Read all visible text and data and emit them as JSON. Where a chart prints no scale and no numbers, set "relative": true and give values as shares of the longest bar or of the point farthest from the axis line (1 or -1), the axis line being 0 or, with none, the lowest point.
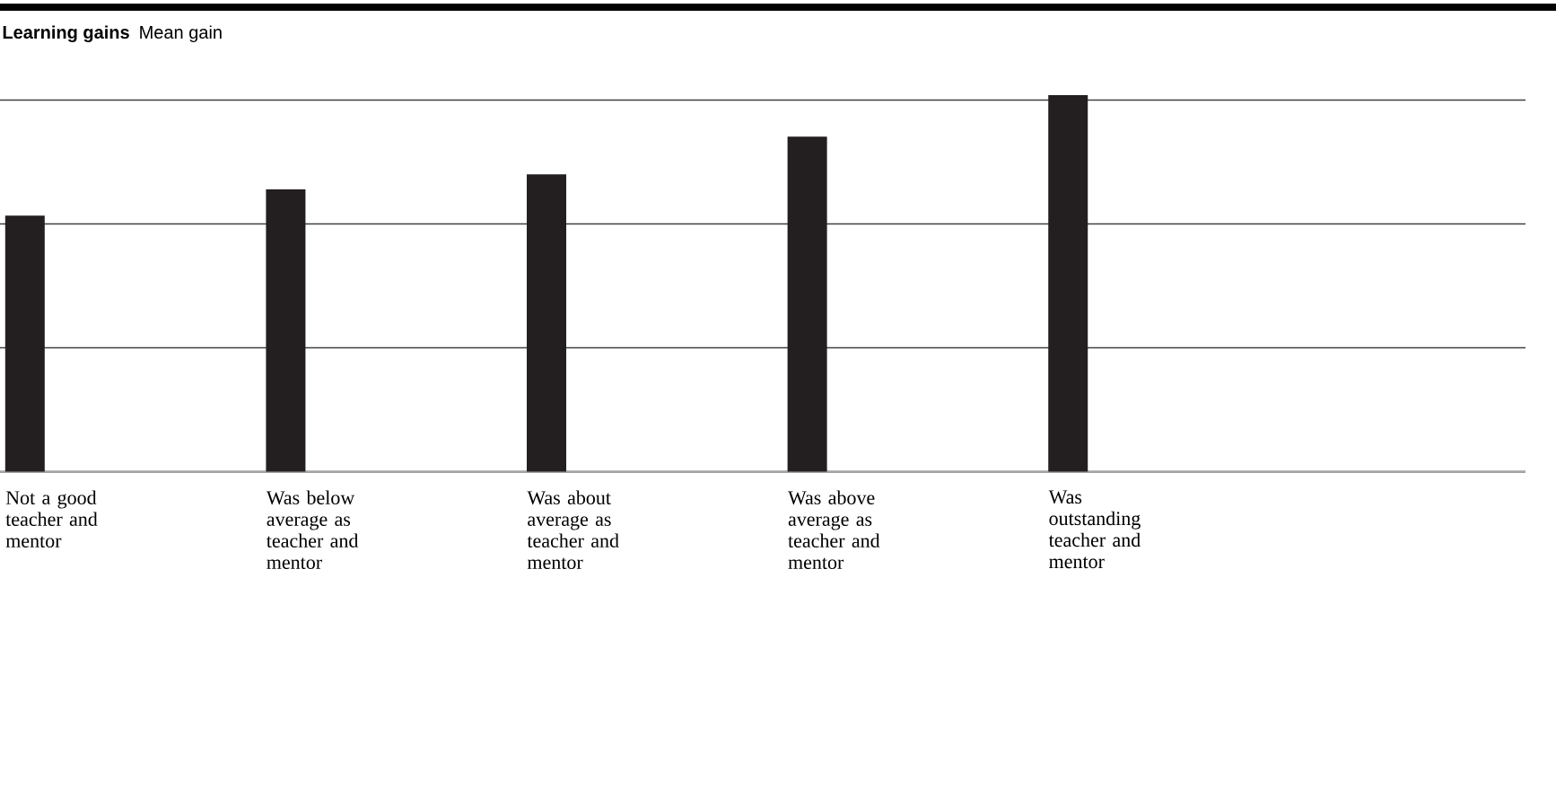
{
  "chart_data": {
    "type": "bar",
    "title": "Learning gains",
    "subtitle": "Mean gain",
    "categories": [
      "Not a good teacher and mentor",
      "Was below average as teacher and mentor",
      "Was about average as teacher and mentor",
      "Was above average as teacher and mentor",
      "Was outstanding teacher and mentor"
    ],
    "values": [
      0.68,
      0.75,
      0.79,
      0.89,
      1
    ],
    "color": "#231f20",
    "relative": true,
    "grid": "y"
  }
}
